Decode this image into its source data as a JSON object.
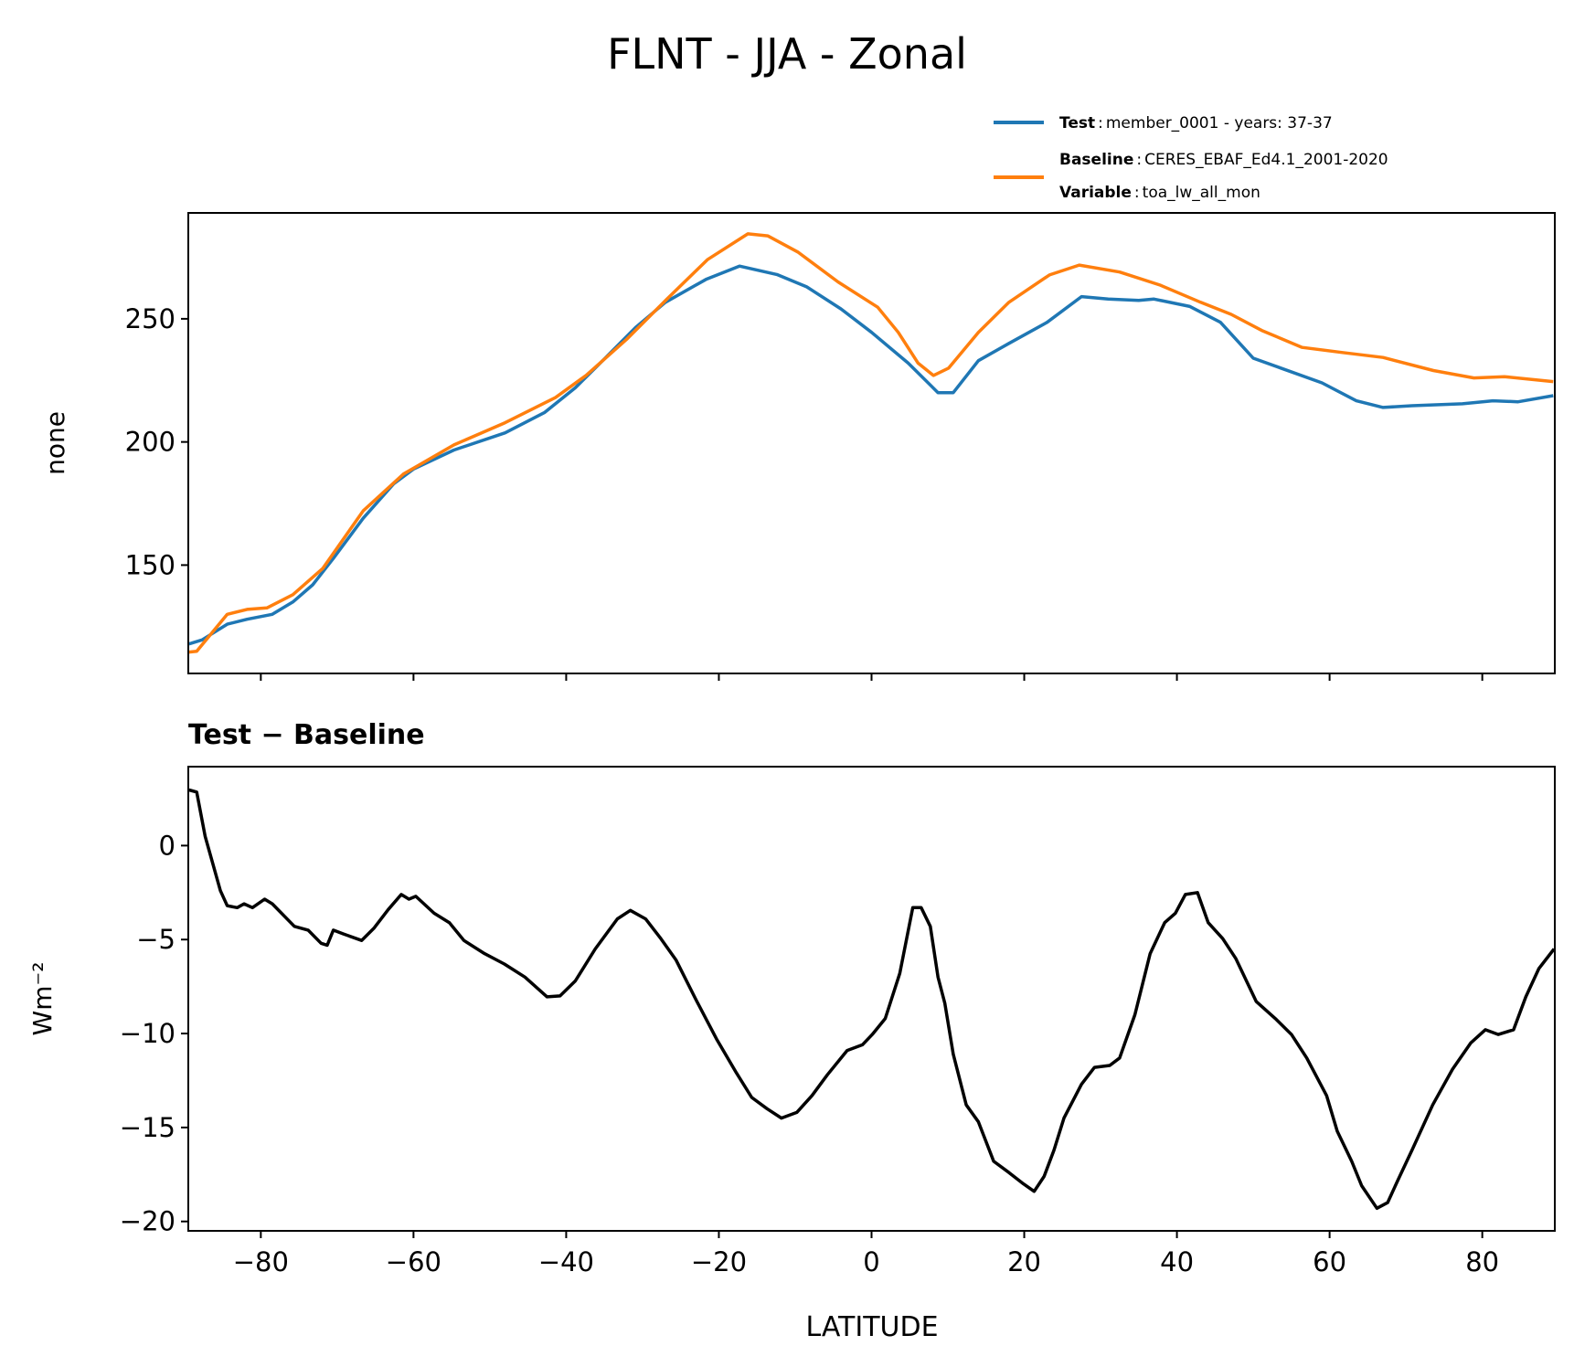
{
  "title": "FLNT - JJA - Zonal",
  "legend": {
    "test_label": "Test",
    "test_value": "member_0001 - years: 37-37",
    "baseline_label": "Baseline",
    "baseline_value": "CERES_EBAF_Ed4.1_2001-2020",
    "variable_label": "Variable",
    "variable_value": "toa_lw_all_mon",
    "separator": ":"
  },
  "colors": {
    "test": "#1f77b4",
    "baseline": "#ff7f0e",
    "diff": "#000000"
  },
  "chart_data": [
    {
      "type": "line",
      "title": "",
      "xlabel": "",
      "ylabel": "none",
      "xlim": [
        -89.5,
        89.5
      ],
      "ylim": [
        106,
        293
      ],
      "xticks": [
        -80,
        -60,
        -40,
        -20,
        0,
        20,
        40,
        60,
        80
      ],
      "yticks": [
        150,
        200,
        250
      ],
      "ytick_labels": [
        "150",
        "200",
        "250"
      ],
      "grid": false,
      "legend_position": "above-top-right",
      "series": [
        {
          "name": "Test",
          "x": [
            -89.4,
            -87.7,
            -84.4,
            -81.8,
            -78.5,
            -75.8,
            -73.2,
            -70.5,
            -66.6,
            -62.6,
            -60,
            -54.7,
            -48,
            -42.8,
            -38.8,
            -34.9,
            -30.9,
            -27,
            -21.7,
            -17.3,
            -12.4,
            -8.5,
            -4,
            0,
            4.8,
            8.7,
            10.7,
            14,
            18,
            23,
            27.5,
            31,
            35,
            37,
            41.7,
            45.7,
            50,
            53.6,
            59,
            63.5,
            67,
            70.8,
            77.4,
            81.4,
            84.7,
            89.3
          ],
          "y": [
            118,
            119.6,
            126,
            128,
            130,
            135,
            142,
            152.7,
            169,
            183,
            189,
            196.7,
            203.7,
            212,
            222,
            234,
            246.5,
            256.7,
            266,
            271.4,
            268,
            263,
            254,
            244.5,
            232,
            220,
            220,
            233,
            240,
            248.6,
            259,
            258,
            257.5,
            258,
            255,
            248.6,
            234,
            230,
            224,
            216.7,
            214,
            214.7,
            215.5,
            216.7,
            216.3,
            218.8
          ]
        },
        {
          "name": "Baseline",
          "x": [
            -89.4,
            -88.4,
            -84.4,
            -81.8,
            -79.2,
            -75.8,
            -71.9,
            -66.6,
            -61.3,
            -54.7,
            -48,
            -41.4,
            -37.4,
            -32.1,
            -26.8,
            -21.5,
            -16.2,
            -13.6,
            -9.6,
            -4.4,
            0.8,
            3.5,
            6.1,
            8.1,
            10.1,
            14,
            18,
            23.3,
            27.2,
            32.5,
            37.8,
            43.1,
            47.1,
            51.1,
            56.4,
            61.7,
            67,
            73.6,
            78.9,
            82.9,
            89.3
          ],
          "y": [
            114.7,
            115,
            130,
            132,
            132.6,
            138,
            148.6,
            172,
            187,
            198.8,
            207.8,
            218,
            227,
            241.6,
            258,
            274,
            284.5,
            283.7,
            277,
            265,
            254.7,
            244.5,
            232,
            227,
            230,
            244.5,
            256.7,
            267.8,
            271.8,
            269,
            263.7,
            256.7,
            251.8,
            245.3,
            238.4,
            236.3,
            234.3,
            229,
            226,
            226.5,
            224.5
          ]
        }
      ]
    },
    {
      "type": "line",
      "title": "Test − Baseline",
      "xlabel": "LATITUDE",
      "ylabel": "Wm⁻²",
      "xlim": [
        -89.5,
        89.5
      ],
      "ylim": [
        -20.5,
        4.2
      ],
      "xticks": [
        -80,
        -60,
        -40,
        -20,
        0,
        20,
        40,
        60,
        80
      ],
      "xtick_labels": [
        "−80",
        "−60",
        "−40",
        "−20",
        "0",
        "20",
        "40",
        "60",
        "80"
      ],
      "yticks": [
        -20,
        -15,
        -10,
        -5,
        0
      ],
      "ytick_labels": [
        "−20",
        "−15",
        "−10",
        "−5",
        "0"
      ],
      "grid": false,
      "series": [
        {
          "name": "Test − Baseline",
          "x": [
            -89.4,
            -88.4,
            -87.3,
            -85.3,
            -84.4,
            -83.1,
            -82.2,
            -81.1,
            -79.5,
            -78.5,
            -75.6,
            -73.8,
            -72.1,
            -71.3,
            -70.5,
            -69.2,
            -66.8,
            -65.2,
            -63.3,
            -61.6,
            -60.6,
            -59.7,
            -57.3,
            -55.3,
            -53.4,
            -50.7,
            -48.1,
            -45.4,
            -42.5,
            -40.8,
            -38.8,
            -36.2,
            -33.3,
            -31.6,
            -29.6,
            -27.6,
            -25.6,
            -23,
            -20.3,
            -17.7,
            -15.7,
            -13.7,
            -11.8,
            -9.8,
            -7.8,
            -5.8,
            -3.2,
            -1.2,
            0.1,
            1.8,
            3.7,
            5.4,
            6.5,
            7.7,
            8.7,
            9.6,
            10.7,
            12.4,
            14,
            16,
            18,
            19.9,
            21.3,
            22.6,
            23.9,
            25.2,
            27.5,
            29.2,
            31.2,
            32.5,
            34.5,
            36.5,
            38.4,
            39.8,
            41.1,
            42.7,
            44.1,
            46,
            47.7,
            50.4,
            53,
            55,
            57,
            59.6,
            61,
            62.9,
            64.2,
            66.2,
            67.6,
            68.9,
            70.8,
            73.5,
            76.1,
            78.5,
            80.4,
            82.1,
            84.1,
            85.7,
            87.4,
            89.4
          ],
          "y": [
            2.96,
            2.85,
            0.5,
            -2.4,
            -3.2,
            -3.3,
            -3.1,
            -3.3,
            -2.85,
            -3.1,
            -4.3,
            -4.5,
            -5.2,
            -5.3,
            -4.5,
            -4.7,
            -5.05,
            -4.4,
            -3.4,
            -2.6,
            -2.85,
            -2.7,
            -3.6,
            -4.1,
            -5.05,
            -5.75,
            -6.3,
            -7.0,
            -8.05,
            -8.0,
            -7.2,
            -5.5,
            -3.9,
            -3.45,
            -3.9,
            -4.95,
            -6.1,
            -8.2,
            -10.3,
            -12.1,
            -13.4,
            -14.0,
            -14.5,
            -14.2,
            -13.3,
            -12.2,
            -10.9,
            -10.6,
            -10.05,
            -9.2,
            -6.8,
            -3.3,
            -3.3,
            -4.3,
            -7.0,
            -8.4,
            -11.1,
            -13.8,
            -14.7,
            -16.8,
            -17.4,
            -18.0,
            -18.4,
            -17.6,
            -16.2,
            -14.5,
            -12.7,
            -11.8,
            -11.7,
            -11.3,
            -9.0,
            -5.75,
            -4.1,
            -3.6,
            -2.6,
            -2.5,
            -4.1,
            -4.95,
            -6.0,
            -8.3,
            -9.25,
            -10.05,
            -11.3,
            -13.3,
            -15.2,
            -16.8,
            -18.1,
            -19.3,
            -19.0,
            -17.85,
            -16.2,
            -13.8,
            -11.9,
            -10.5,
            -9.8,
            -10.05,
            -9.8,
            -8.05,
            -6.55,
            -5.5
          ]
        }
      ]
    }
  ]
}
